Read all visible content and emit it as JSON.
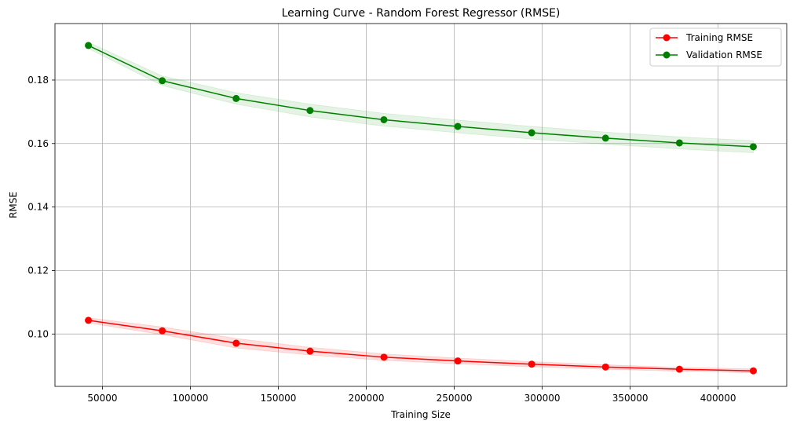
{
  "chart_data": {
    "type": "line",
    "title": "Learning Curve - Random Forest Regressor (RMSE)",
    "xlabel": "Training Size",
    "ylabel": "RMSE",
    "xlim": [
      23000,
      439000
    ],
    "ylim": [
      0.0835,
      0.1978
    ],
    "x_ticks": [
      50000,
      100000,
      150000,
      200000,
      250000,
      300000,
      350000,
      400000
    ],
    "y_ticks": [
      0.1,
      0.12,
      0.14,
      0.16,
      0.18
    ],
    "x_tick_labels": [
      "50000",
      "100000",
      "150000",
      "200000",
      "250000",
      "300000",
      "350000",
      "400000"
    ],
    "y_tick_labels": [
      "0.10",
      "0.12",
      "0.14",
      "0.16",
      "0.18"
    ],
    "grid": true,
    "legend_position": "top-right",
    "x": [
      42000,
      84000,
      126000,
      168000,
      210000,
      252000,
      294000,
      336000,
      378000,
      420000
    ],
    "series": [
      {
        "name": "Training RMSE",
        "color": "#ff0000",
        "band_color": "#ff0000",
        "values": [
          0.1043,
          0.101,
          0.0971,
          0.0946,
          0.0927,
          0.0915,
          0.0905,
          0.0896,
          0.0889,
          0.0884
        ],
        "band": [
          0.0008,
          0.0012,
          0.0015,
          0.0012,
          0.001,
          0.0009,
          0.0008,
          0.0007,
          0.0006,
          0.0006
        ]
      },
      {
        "name": "Validation RMSE",
        "color": "#008000",
        "band_color": "#2ca02c",
        "values": [
          0.1909,
          0.1798,
          0.1742,
          0.1704,
          0.1675,
          0.1654,
          0.1634,
          0.1617,
          0.1602,
          0.159
        ],
        "band": [
          0.001,
          0.0015,
          0.0018,
          0.002,
          0.002,
          0.002,
          0.002,
          0.0019,
          0.0019,
          0.0019
        ]
      }
    ]
  }
}
